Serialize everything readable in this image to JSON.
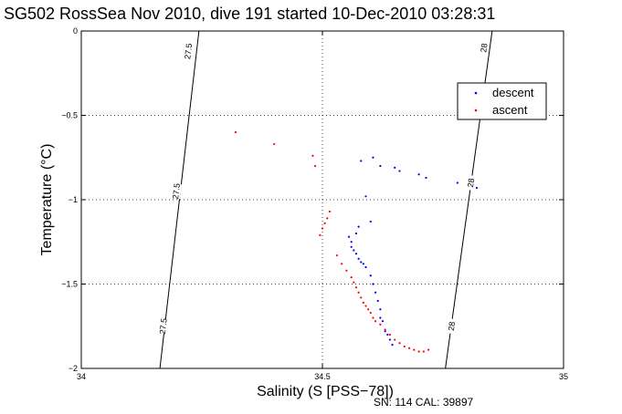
{
  "chart_data": {
    "type": "scatter",
    "title": "SG502 RossSea Nov 2010, dive 191 started 10-Dec-2010 03:28:31",
    "xlabel": "Salinity (S [PSS−78])",
    "ylabel": "Temperature (°C)",
    "xlim": [
      34,
      35
    ],
    "ylim": [
      -2,
      0
    ],
    "xticks": [
      34,
      34.5,
      35
    ],
    "xtick_labels": [
      "34",
      "34.5",
      "35"
    ],
    "yticks": [
      0,
      -0.5,
      -1,
      -1.5,
      -2
    ],
    "ytick_labels": [
      "0",
      "−0.5",
      "−1",
      "−1.5",
      "−2"
    ],
    "grid": true,
    "legend_placement": "top-right",
    "footnote": "SN: 114  CAL: 39897",
    "colors": {
      "descent": "#0000ff",
      "ascent": "#ff0000",
      "axes": "#000000"
    },
    "isopycnals": [
      {
        "value": "27.5",
        "line": [
          [
            34.163,
            -2.0
          ],
          [
            34.244,
            0.0
          ]
        ],
        "labels": [
          [
            34.222,
            -0.12
          ],
          [
            34.197,
            -0.95
          ],
          [
            34.17,
            -1.75
          ]
        ]
      },
      {
        "value": "28",
        "line": [
          [
            34.755,
            -2.0
          ],
          [
            34.852,
            0.0
          ]
        ],
        "labels": [
          [
            34.835,
            -0.1
          ],
          [
            34.808,
            -0.9
          ],
          [
            34.768,
            -1.75
          ]
        ]
      }
    ],
    "series": [
      {
        "name": "descent",
        "x": [
          34.58,
          34.605,
          34.62,
          34.65,
          34.66,
          34.7,
          34.715,
          34.78,
          34.82,
          34.59,
          34.575,
          34.6,
          34.57,
          34.56,
          34.555,
          34.56,
          34.565,
          34.57,
          34.575,
          34.58,
          34.585,
          34.59,
          34.6,
          34.605,
          34.61,
          34.615,
          34.62,
          34.62,
          34.625,
          34.63,
          34.635,
          34.64,
          34.645
        ],
        "y": [
          -0.77,
          -0.75,
          -0.8,
          -0.81,
          -0.83,
          -0.85,
          -0.87,
          -0.9,
          -0.93,
          -0.98,
          -1.16,
          -1.13,
          -1.2,
          -1.25,
          -1.22,
          -1.28,
          -1.3,
          -1.32,
          -1.35,
          -1.37,
          -1.38,
          -1.4,
          -1.45,
          -1.5,
          -1.55,
          -1.6,
          -1.65,
          -1.7,
          -1.72,
          -1.78,
          -1.8,
          -1.83,
          -1.86
        ]
      },
      {
        "name": "ascent",
        "x": [
          34.32,
          34.4,
          34.48,
          34.485,
          34.515,
          34.51,
          34.505,
          34.5,
          34.495,
          34.53,
          34.54,
          34.55,
          34.56,
          34.565,
          34.57,
          34.575,
          34.58,
          34.585,
          34.59,
          34.595,
          34.6,
          34.605,
          34.61,
          34.62,
          34.63,
          34.64,
          34.65,
          34.66,
          34.67,
          34.68,
          34.69,
          34.7,
          34.71,
          34.72
        ],
        "y": [
          -0.6,
          -0.67,
          -0.74,
          -0.8,
          -1.07,
          -1.11,
          -1.14,
          -1.17,
          -1.21,
          -1.33,
          -1.38,
          -1.42,
          -1.46,
          -1.49,
          -1.52,
          -1.55,
          -1.58,
          -1.61,
          -1.63,
          -1.65,
          -1.67,
          -1.7,
          -1.72,
          -1.74,
          -1.77,
          -1.8,
          -1.83,
          -1.85,
          -1.87,
          -1.88,
          -1.89,
          -1.9,
          -1.9,
          -1.89
        ]
      }
    ]
  }
}
